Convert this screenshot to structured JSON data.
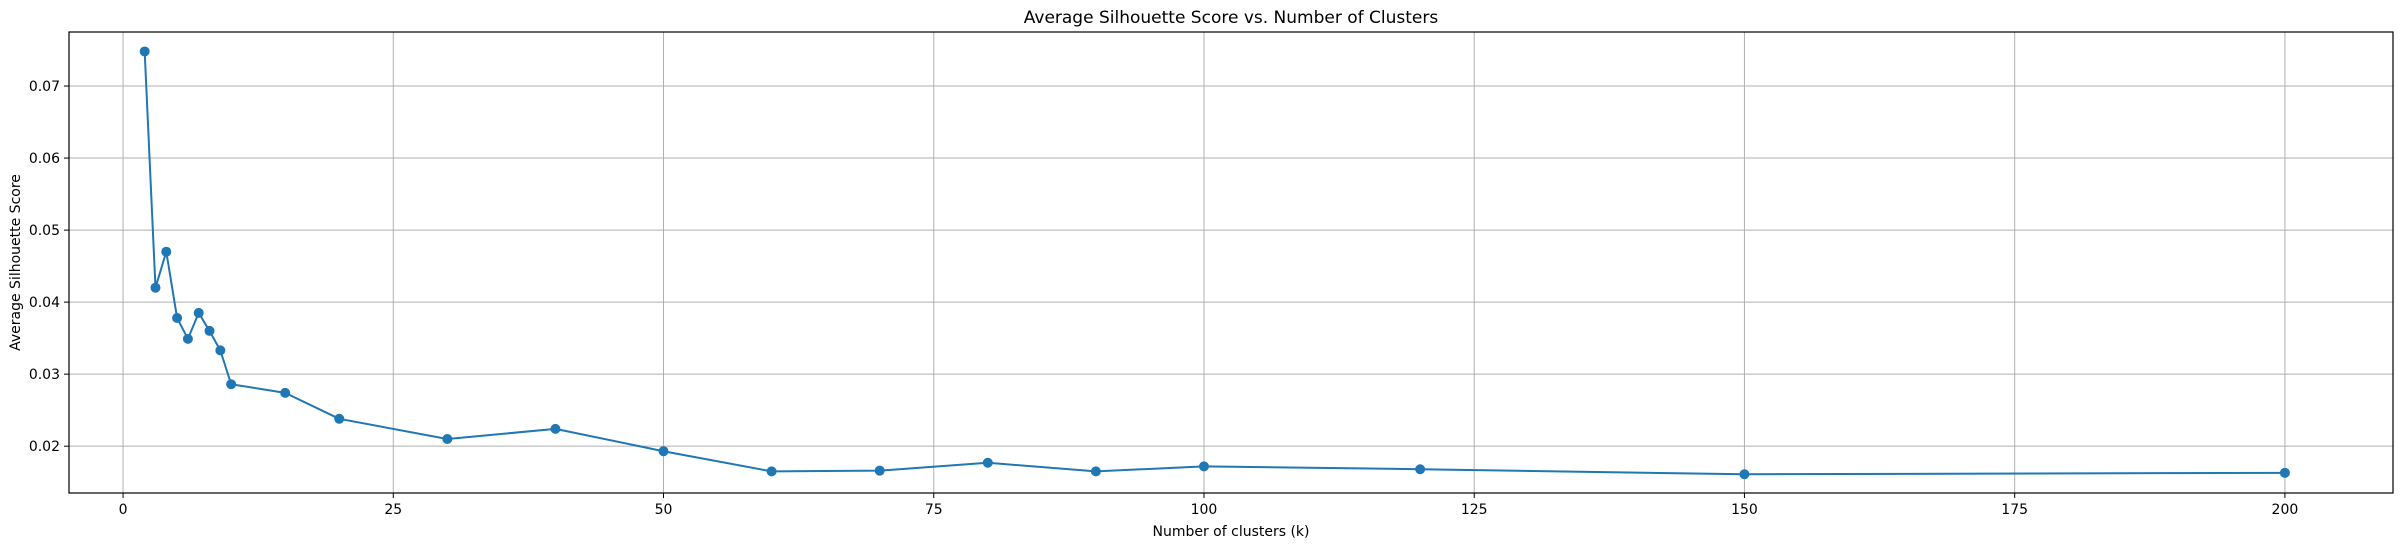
{
  "chart_data": {
    "type": "line",
    "title": "Average Silhouette Score vs. Number of Clusters",
    "xlabel": "Number of clusters (k)",
    "ylabel": "Average Silhouette Score",
    "xlim": [
      -5,
      210
    ],
    "ylim": [
      0.0135,
      0.0775
    ],
    "xticks": [
      0,
      25,
      50,
      75,
      100,
      125,
      150,
      175,
      200
    ],
    "xtick_labels": [
      "0",
      "25",
      "50",
      "75",
      "100",
      "125",
      "150",
      "175",
      "200"
    ],
    "yticks": [
      0.02,
      0.03,
      0.04,
      0.05,
      0.06,
      0.07
    ],
    "ytick_labels": [
      "0.02",
      "0.03",
      "0.04",
      "0.05",
      "0.06",
      "0.07"
    ],
    "grid": true,
    "marker": "circle",
    "series_color": "#1f77b4",
    "series": [
      {
        "x": [
          2,
          3,
          4,
          5,
          6,
          7,
          8,
          9,
          10,
          15,
          20,
          30,
          40,
          50,
          60,
          70,
          80,
          90,
          100,
          120,
          150,
          200
        ],
        "values": [
          0.0748,
          0.042,
          0.047,
          0.0378,
          0.0349,
          0.0385,
          0.036,
          0.0333,
          0.0286,
          0.0274,
          0.0238,
          0.021,
          0.0224,
          0.0193,
          0.0165,
          0.0166,
          0.0177,
          0.0165,
          0.0172,
          0.0168,
          0.0161,
          0.0163
        ]
      }
    ]
  }
}
